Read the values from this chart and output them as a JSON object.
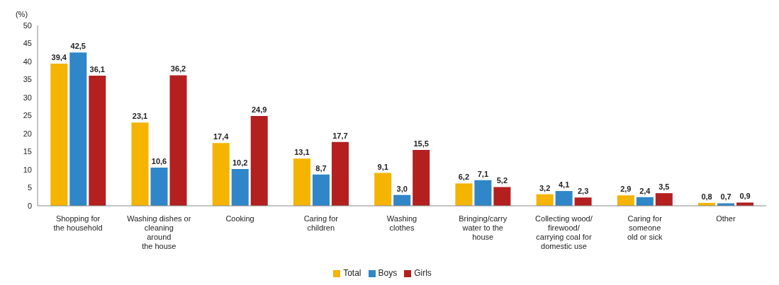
{
  "chart_data": {
    "type": "bar",
    "ylabel": "(%)",
    "categories": [
      "Shopping for\nthe household",
      "Washing dishes or\ncleaning\naround\nthe house",
      "Cooking",
      "Caring for\nchildren",
      "Washing\nclothes",
      "Bringing/carry\nwater to the\nhouse",
      "Collecting wood/\nfirewood/\ncarrying coal for\ndomestic use",
      "Caring for\nsomeone\nold or sick",
      "Other"
    ],
    "series": [
      {
        "name": "Total",
        "color": "#f4b400",
        "values": [
          39.4,
          23.1,
          17.4,
          13.1,
          9.1,
          6.2,
          3.2,
          2.9,
          0.8
        ],
        "value_labels": [
          "39,4",
          "23,1",
          "17,4",
          "13,1",
          "9,1",
          "6,2",
          "3,2",
          "2,9",
          "0,8"
        ]
      },
      {
        "name": "Boys",
        "color": "#2f86c9",
        "values": [
          42.5,
          10.6,
          10.2,
          8.7,
          3.0,
          7.1,
          4.1,
          2.4,
          0.7
        ],
        "value_labels": [
          "42,5",
          "10,6",
          "10,2",
          "8,7",
          "3,0",
          "7,1",
          "4,1",
          "2,4",
          "0,7"
        ]
      },
      {
        "name": "Girls",
        "color": "#b3201f",
        "values": [
          36.1,
          36.2,
          24.9,
          17.7,
          15.5,
          5.2,
          2.3,
          3.5,
          0.9
        ],
        "value_labels": [
          "36,1",
          "36,2",
          "24,9",
          "17,7",
          "15,5",
          "5,2",
          "2,3",
          "3,5",
          "0,9"
        ]
      }
    ],
    "ylim": [
      0,
      50
    ],
    "yticks": [
      0,
      5,
      10,
      15,
      20,
      25,
      30,
      35,
      40,
      45,
      50
    ],
    "grid": false,
    "legend": "bottom"
  }
}
